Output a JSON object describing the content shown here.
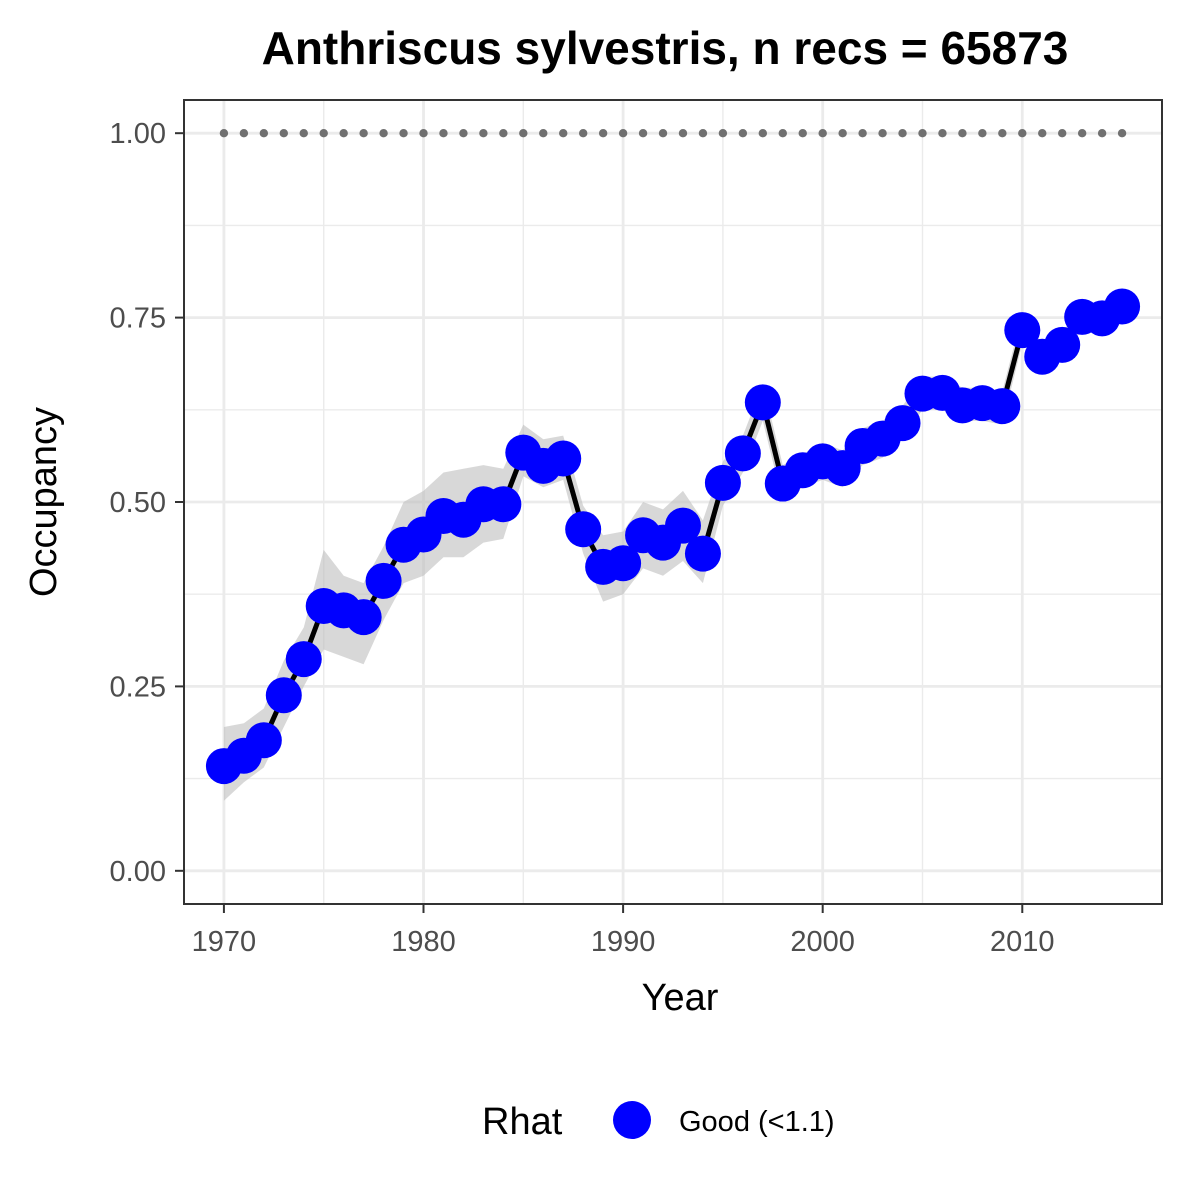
{
  "chart_data": {
    "type": "line",
    "title": "Anthriscus sylvestris, n recs = 65873",
    "xlabel": "Year",
    "ylabel": "Occupancy",
    "xlim": [
      1968,
      2017
    ],
    "ylim": [
      -0.045,
      1.045
    ],
    "x_ticks": [
      1970,
      1980,
      1990,
      2000,
      2010
    ],
    "x_tick_labels": [
      "1970",
      "1980",
      "1990",
      "2000",
      "2010"
    ],
    "y_ticks": [
      0,
      0.25,
      0.5,
      0.75,
      1.0
    ],
    "y_tick_labels": [
      "0.00",
      "0.25",
      "0.50",
      "0.75",
      "1.00"
    ],
    "grid": true,
    "legend_position": "bottom",
    "legend": {
      "title": "Rhat",
      "items": [
        {
          "label": "Good (<1.1)",
          "color": "#0000ff"
        }
      ]
    },
    "colors": {
      "points": "#0000ff",
      "line": "#000000",
      "ribbon": "#bebebe",
      "reference": "#707070",
      "grid": "#ebebeb",
      "panel_border": "#333333"
    },
    "reference_line": {
      "y": 1.0,
      "style": "dotted"
    },
    "series": [
      {
        "x": [
          1970,
          1971,
          1972,
          1973,
          1974,
          1975,
          1976,
          1977,
          1978,
          1979,
          1980,
          1981,
          1982,
          1983,
          1984,
          1985,
          1986,
          1987,
          1988,
          1989,
          1990,
          1991,
          1992,
          1993,
          1994,
          1995,
          1996,
          1997,
          1998,
          1999,
          2000,
          2001,
          2002,
          2003,
          2004,
          2005,
          2006,
          2007,
          2008,
          2009,
          2010,
          2011,
          2012,
          2013,
          2014,
          2015
        ],
        "values": [
          0.142,
          0.156,
          0.177,
          0.238,
          0.287,
          0.359,
          0.353,
          0.344,
          0.393,
          0.442,
          0.456,
          0.481,
          0.476,
          0.497,
          0.497,
          0.567,
          0.549,
          0.559,
          0.463,
          0.412,
          0.417,
          0.455,
          0.445,
          0.468,
          0.43,
          0.526,
          0.566,
          0.635,
          0.525,
          0.543,
          0.555,
          0.546,
          0.576,
          0.586,
          0.607,
          0.647,
          0.648,
          0.631,
          0.634,
          0.63,
          0.733,
          0.697,
          0.713,
          0.751,
          0.749,
          0.765
        ],
        "lower": [
          0.095,
          0.12,
          0.14,
          0.195,
          0.25,
          0.3,
          0.29,
          0.28,
          0.34,
          0.39,
          0.4,
          0.425,
          0.425,
          0.445,
          0.45,
          0.535,
          0.52,
          0.53,
          0.43,
          0.365,
          0.375,
          0.41,
          0.4,
          0.42,
          0.39,
          0.495,
          0.54,
          0.61,
          0.5,
          0.52,
          0.53,
          0.52,
          0.55,
          0.56,
          0.585,
          0.625,
          0.625,
          0.61,
          0.61,
          0.605,
          0.715,
          0.68,
          0.695,
          0.735,
          0.735,
          0.75
        ],
        "upper": [
          0.195,
          0.2,
          0.22,
          0.285,
          0.33,
          0.435,
          0.4,
          0.39,
          0.44,
          0.5,
          0.515,
          0.54,
          0.545,
          0.55,
          0.545,
          0.605,
          0.585,
          0.59,
          0.495,
          0.455,
          0.46,
          0.5,
          0.49,
          0.515,
          0.475,
          0.555,
          0.59,
          0.66,
          0.55,
          0.565,
          0.58,
          0.57,
          0.6,
          0.61,
          0.63,
          0.67,
          0.67,
          0.655,
          0.655,
          0.65,
          0.755,
          0.715,
          0.73,
          0.768,
          0.765,
          0.78
        ]
      }
    ]
  }
}
